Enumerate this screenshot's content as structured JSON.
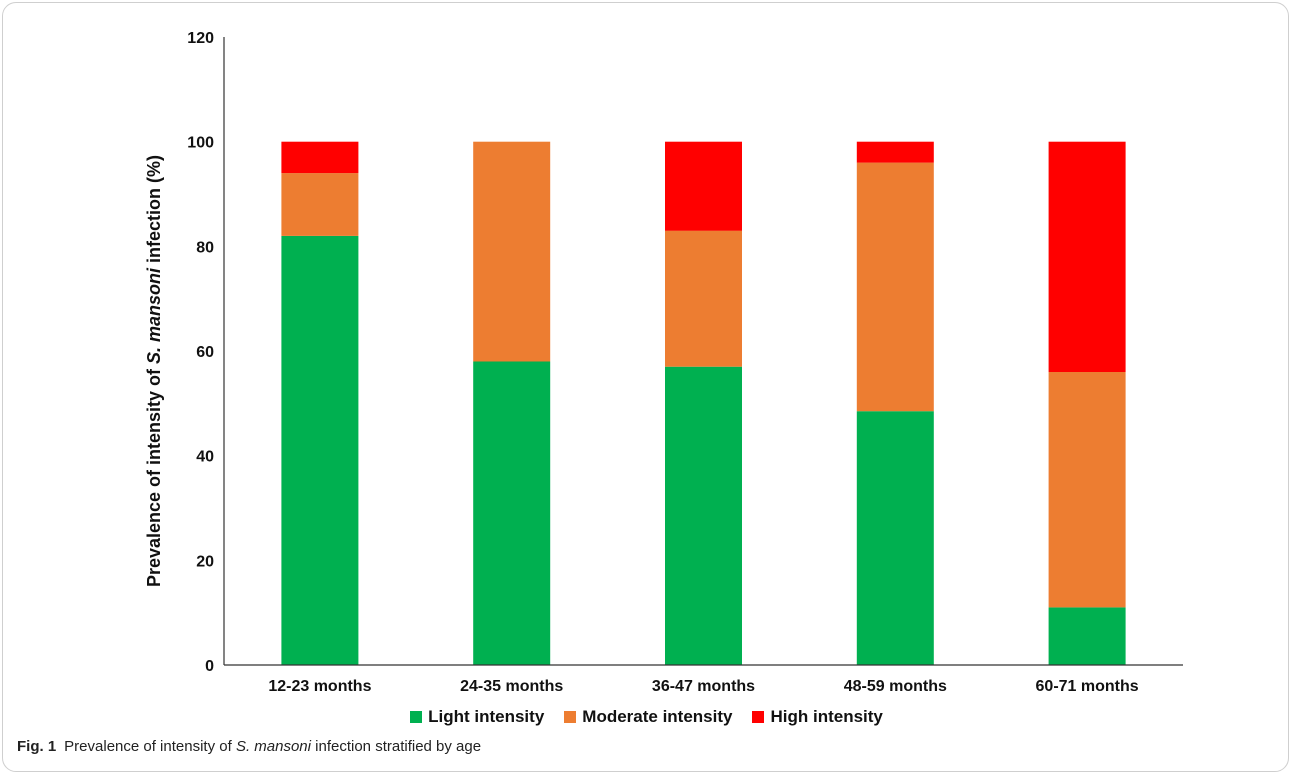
{
  "chart_data": {
    "type": "bar",
    "stacked": true,
    "categories": [
      "12-23 months",
      "24-35 months",
      "36-47 months",
      "48-59 months",
      "60-71 months"
    ],
    "series": [
      {
        "name": "Light intensity",
        "color": "#00b050",
        "values": [
          82.0,
          58.0,
          57.0,
          48.5,
          11.0
        ]
      },
      {
        "name": "Moderate intensity",
        "color": "#ed7d31",
        "values": [
          12.0,
          42.0,
          26.0,
          47.5,
          45.0
        ]
      },
      {
        "name": "High intensity",
        "color": "#ff0000",
        "values": [
          6.0,
          0,
          17.0,
          4.0,
          44.0
        ]
      }
    ],
    "ylabel_parts": [
      "Prevalence of intensity of ",
      "S. mansoni",
      " infection (%)"
    ],
    "ylim": [
      0,
      120
    ],
    "yticks": [
      "0",
      "20",
      "40",
      "60",
      "80",
      "100",
      "120"
    ],
    "grid": false,
    "legend_position": "bottom"
  },
  "legend": {
    "items": [
      {
        "label": "Light intensity",
        "color": "#00b050"
      },
      {
        "label": "Moderate intensity",
        "color": "#ed7d31"
      },
      {
        "label": "High intensity",
        "color": "#ff0000"
      }
    ]
  },
  "caption": {
    "fig_label": "Fig. 1",
    "text_before": "Prevalence of intensity of ",
    "text_italic": "S. mansoni",
    "text_after": " infection stratified by age"
  }
}
